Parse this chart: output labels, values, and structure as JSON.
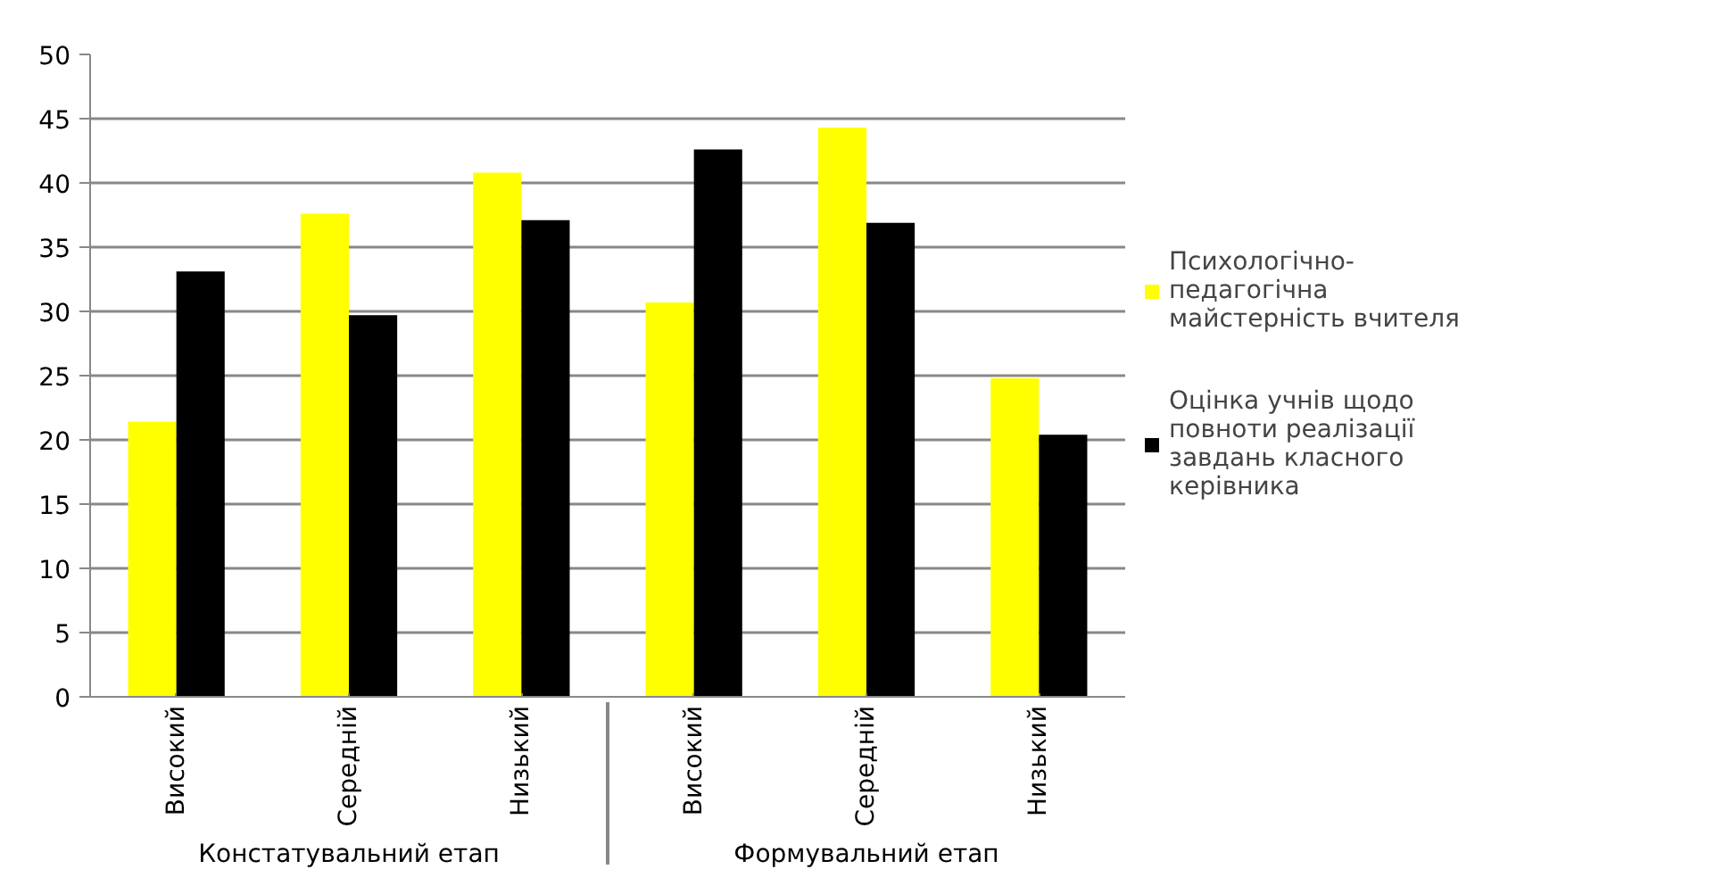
{
  "chart_data": {
    "type": "bar",
    "categories": [
      "Високий",
      "Середній",
      "Низький",
      "Високий",
      "Середній",
      "Низький"
    ],
    "series": [
      {
        "name": "Психологічно-педагогічна майстерність вчителя",
        "color": "#ffff00",
        "values": [
          21.4,
          37.6,
          40.8,
          30.7,
          44.3,
          24.8
        ]
      },
      {
        "name": "Оцінка учнів щодо повноти реалізації завдань класного керівника",
        "color": "#000000",
        "values": [
          33.1,
          29.7,
          37.1,
          42.6,
          36.9,
          20.4
        ]
      }
    ],
    "annotations": [
      "Констатувальний етап",
      "Формувальний етап"
    ],
    "ylim": [
      0,
      50
    ],
    "yticks": [
      0,
      5,
      10,
      15,
      20,
      25,
      30,
      35,
      40,
      45,
      50
    ],
    "grid": "y",
    "legend": "right"
  }
}
